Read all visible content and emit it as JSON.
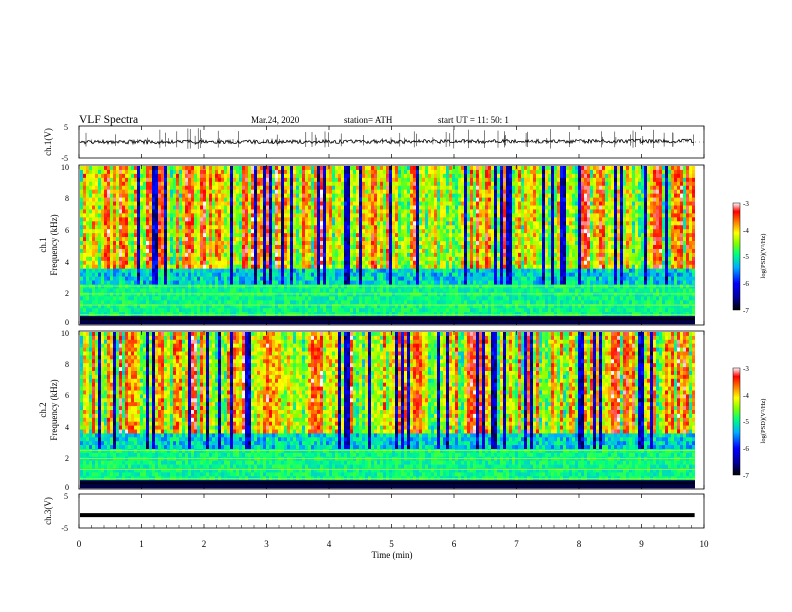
{
  "header": {
    "title": "VLF  Spectra",
    "date": "Mar.24, 2020",
    "station": "station= ATH",
    "start": "start  UT  =    11: 50: 1"
  },
  "colors": {
    "axis": "#000000",
    "colorscale": [
      "#000000",
      "#0000a0",
      "#0000ff",
      "#00b0ff",
      "#00ff80",
      "#80ff00",
      "#ffff00",
      "#ff8000",
      "#ff0000",
      "#ffffff"
    ]
  },
  "chart_data": [
    {
      "type": "line",
      "panel": "ch1-waveform",
      "ylabel": "ch.1(V)",
      "ylim": [
        -5,
        5
      ],
      "yticks": [
        "5",
        "-5"
      ],
      "xlim": [
        0,
        10
      ],
      "series": [
        {
          "x": [
            0,
            9.85
          ],
          "y": [
            0,
            0.3
          ]
        }
      ]
    },
    {
      "type": "heatmap",
      "panel": "ch1-spectrogram",
      "ylabel": "ch.1\nFrequency  (kHz)",
      "ylim": [
        0,
        10
      ],
      "yticks": [
        "0",
        "2",
        "4",
        "6",
        "8",
        "10"
      ],
      "xlim": [
        0,
        10
      ],
      "x_data_end": 9.85,
      "colorbar": {
        "label": "log(PSD)(V²/Hz)",
        "range": [
          -7,
          -3
        ],
        "ticks": [
          "-3",
          "-4",
          "-5",
          "-6",
          "-7"
        ]
      }
    },
    {
      "type": "heatmap",
      "panel": "ch2-spectrogram",
      "ylabel": "ch.2\nFrequency  (kHz)",
      "ylim": [
        0,
        10
      ],
      "yticks": [
        "0",
        "2",
        "4",
        "6",
        "8",
        "10"
      ],
      "xlim": [
        0,
        10
      ],
      "x_data_end": 9.85,
      "colorbar": {
        "label": "log(PSD)(V²/Hz)",
        "range": [
          -7,
          -3
        ],
        "ticks": [
          "-3",
          "-4",
          "-5",
          "-6",
          "-7"
        ]
      }
    },
    {
      "type": "line",
      "panel": "ch3-waveform",
      "ylabel": "ch.3(V)",
      "ylim": [
        -5,
        5
      ],
      "yticks": [
        "5",
        "-5"
      ],
      "xlim": [
        0,
        10
      ],
      "series": [
        {
          "x": [
            0,
            9.85
          ],
          "y": [
            -1.2,
            -1.2
          ]
        }
      ]
    }
  ],
  "xaxis": {
    "label": "Time  (min)",
    "ticks": [
      "0",
      "1",
      "2",
      "3",
      "4",
      "5",
      "6",
      "7",
      "8",
      "9",
      "10"
    ]
  }
}
